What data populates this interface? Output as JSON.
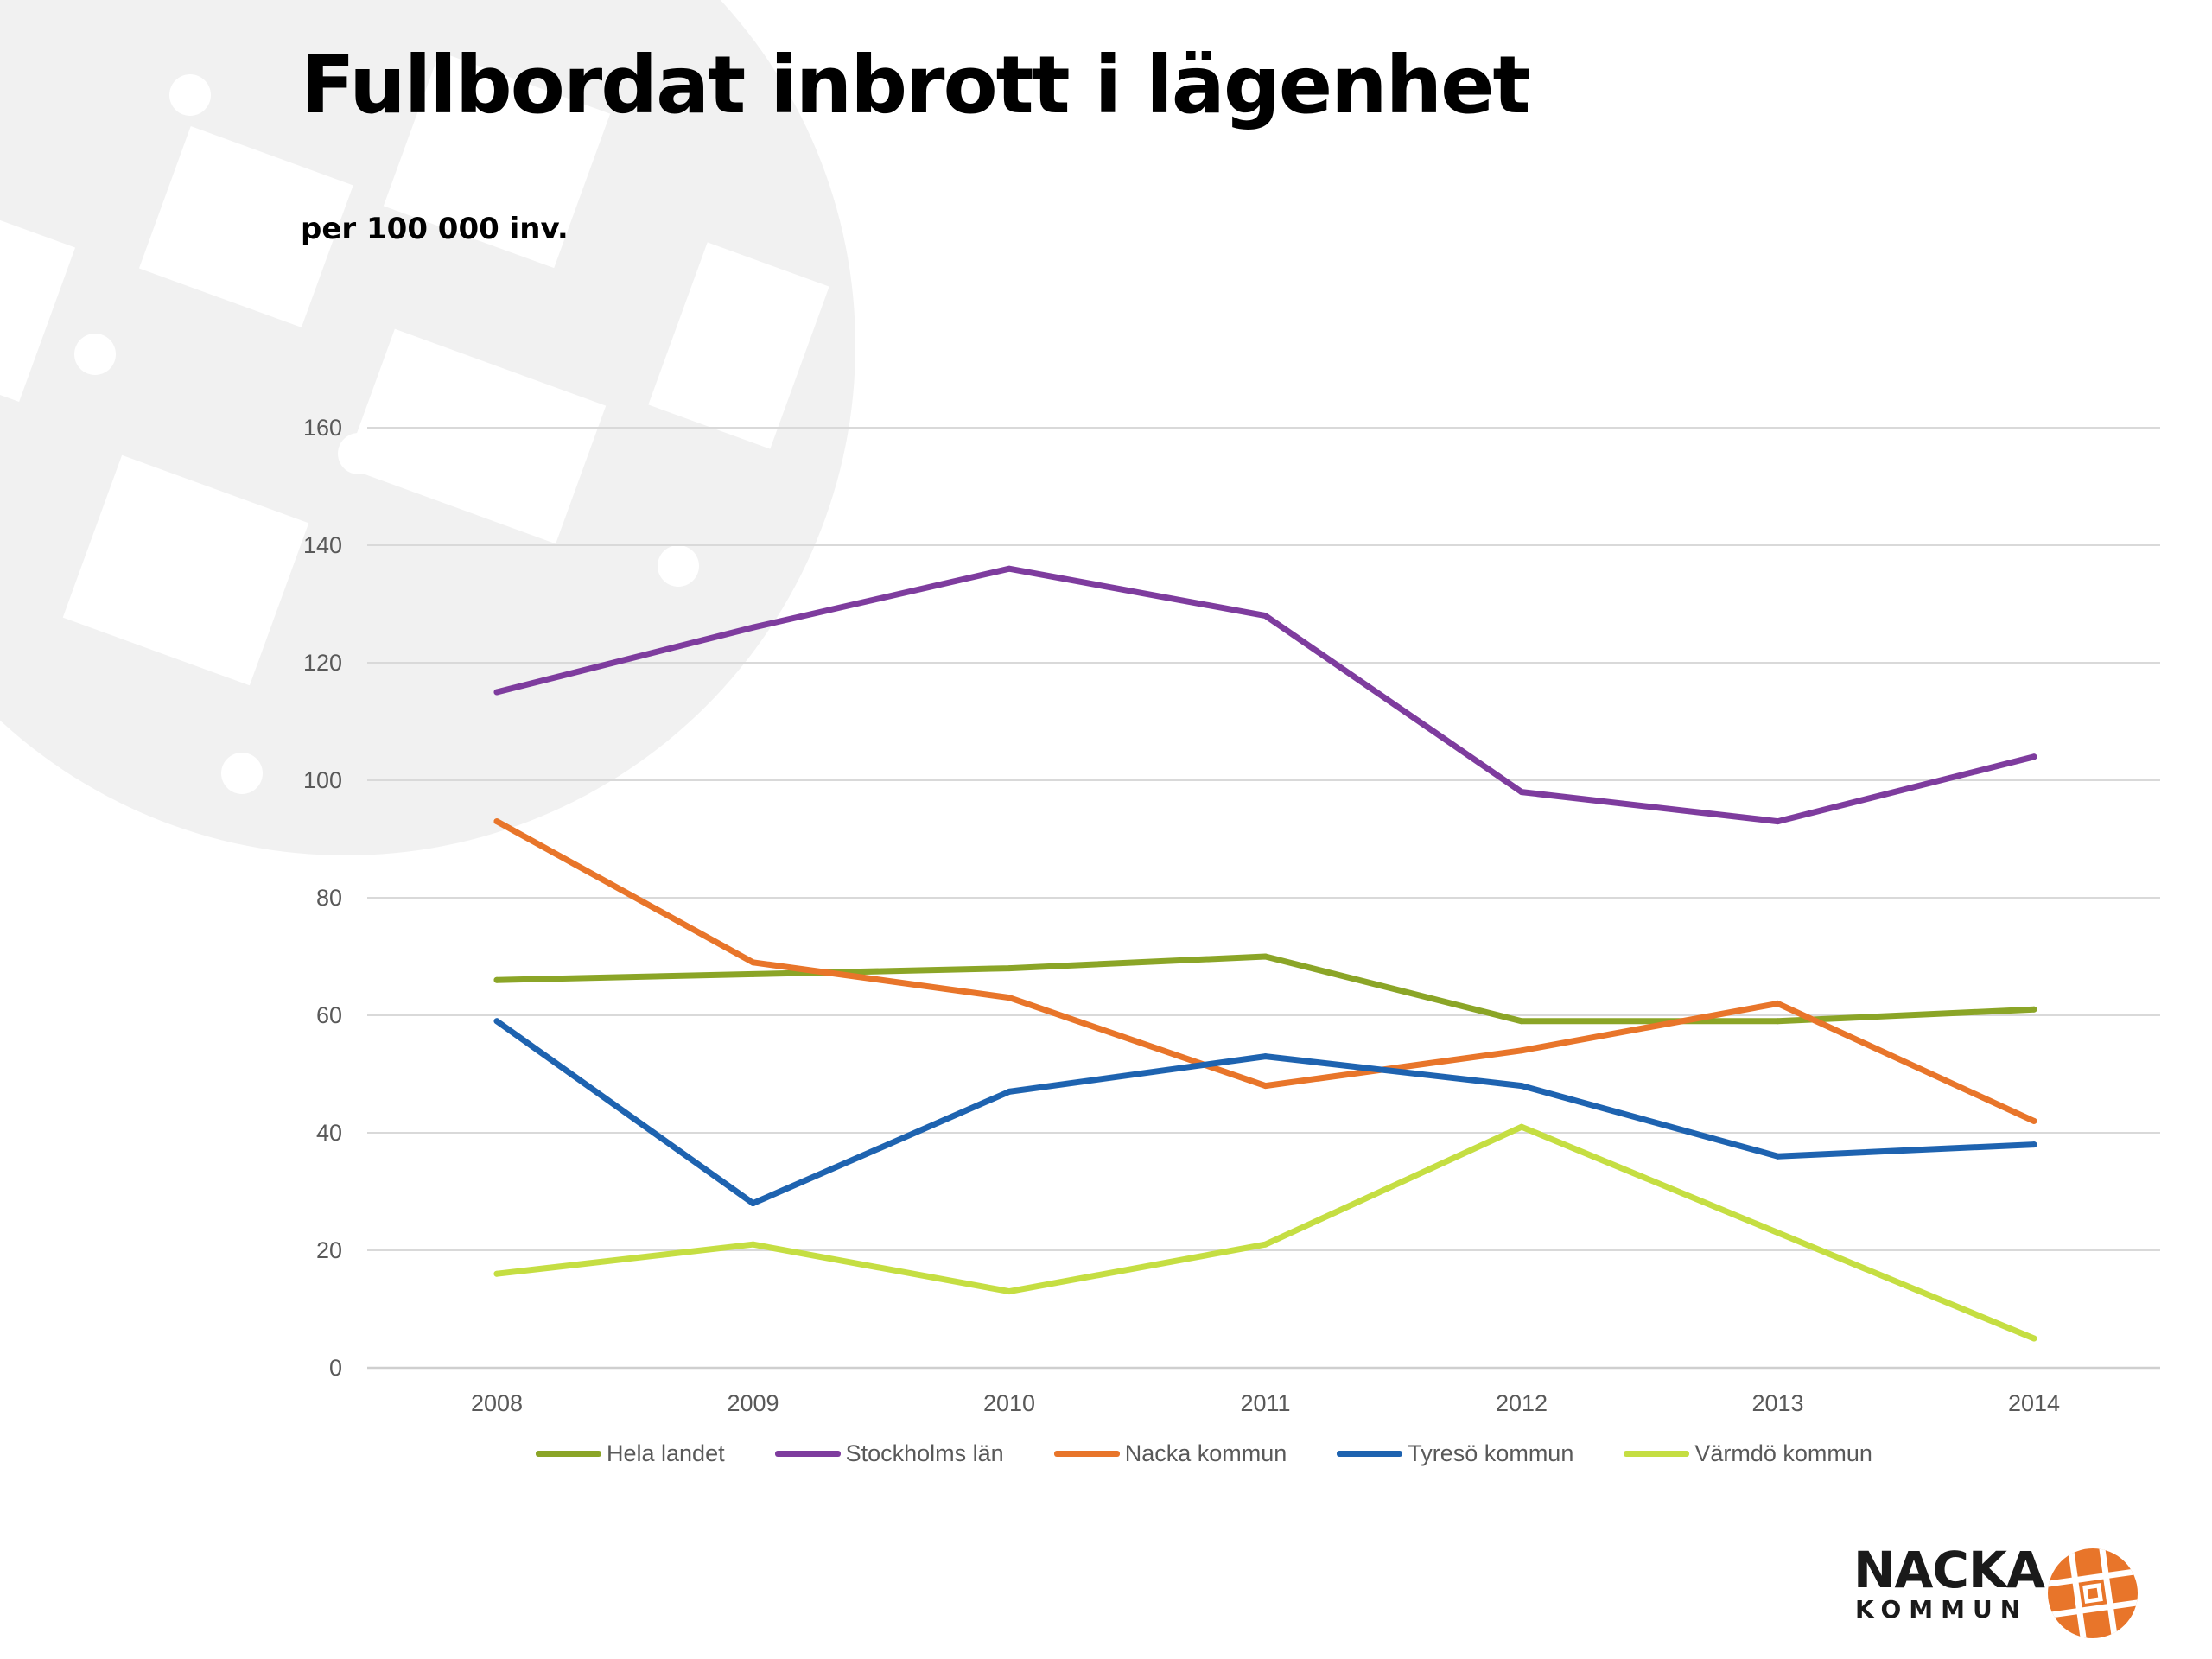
{
  "header": {
    "title": "Fullbordat inbrott i lägenhet",
    "subtitle": "per 100 000 inv."
  },
  "brand": {
    "name": "NACKA",
    "sub": "KOMMUN",
    "color": "#E8752A"
  },
  "chart_data": {
    "type": "line",
    "title": "",
    "xlabel": "",
    "ylabel": "",
    "categories": [
      "2008",
      "2009",
      "2010",
      "2011",
      "2012",
      "2013",
      "2014"
    ],
    "ylim": [
      0,
      160
    ],
    "yticks": [
      0,
      20,
      40,
      60,
      80,
      100,
      120,
      140,
      160
    ],
    "grid": true,
    "legend": "bottom",
    "series": [
      {
        "name": "Hela landet",
        "color": "#8BA527",
        "values": [
          66,
          67,
          68,
          70,
          59,
          59,
          61
        ]
      },
      {
        "name": "Stockholms län",
        "color": "#7E3C9E",
        "values": [
          115,
          126,
          136,
          128,
          98,
          93,
          104
        ]
      },
      {
        "name": "Nacka kommun",
        "color": "#E8752A",
        "values": [
          93,
          69,
          63,
          48,
          54,
          62,
          42
        ]
      },
      {
        "name": "Tyresö kommun",
        "color": "#1E63B0",
        "values": [
          59,
          28,
          47,
          53,
          48,
          36,
          38
        ]
      },
      {
        "name": "Värmdö kommun",
        "color": "#C5DE42",
        "values": [
          16,
          21,
          13,
          21,
          41,
          23,
          5
        ]
      }
    ]
  }
}
